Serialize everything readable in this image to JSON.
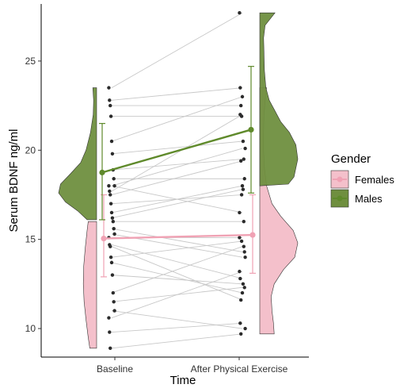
{
  "chart_data": {
    "type": "scatter",
    "xlabel": "Time",
    "ylabel": "Serum BDNF ng/ml",
    "categories": [
      "Baseline",
      "After Physical Exercise"
    ],
    "ylim": [
      8.4,
      28.2
    ],
    "yticks": [
      10,
      15,
      20,
      25
    ],
    "grid": false,
    "legend": {
      "title": "Gender",
      "position": "right",
      "entries": [
        "Females",
        "Males"
      ]
    },
    "colors": {
      "Females": "#f4c0cb",
      "Females_line": "#f0a2b4",
      "Males": "#6f8f3f",
      "Males_line": "#5f8a2b",
      "point": "#2b2b2b",
      "pair_line": "#c8c8c8"
    },
    "series": [
      {
        "name": "Females",
        "mean": [
          15.05,
          15.25
        ],
        "error_low": [
          12.9,
          13.1
        ],
        "error_high": [
          17.5,
          17.5
        ]
      },
      {
        "name": "Males",
        "mean": [
          18.75,
          21.15
        ],
        "error_low": [
          16.1,
          17.6
        ],
        "error_high": [
          21.5,
          24.7
        ]
      }
    ],
    "paired": [
      [
        23.5,
        27.7
      ],
      [
        22.8,
        23.5
      ],
      [
        22.5,
        22.5
      ],
      [
        21.9,
        21.9
      ],
      [
        20.5,
        23.0
      ],
      [
        19.8,
        20.5
      ],
      [
        18.9,
        19.5
      ],
      [
        18.4,
        18.4
      ],
      [
        18.0,
        20.1
      ],
      [
        18.0,
        16.5
      ],
      [
        17.7,
        22.0
      ],
      [
        17.5,
        19.4
      ],
      [
        17.0,
        17.5
      ],
      [
        16.5,
        18.0
      ],
      [
        16.2,
        17.8
      ],
      [
        16.0,
        16.0
      ],
      [
        15.6,
        14.3
      ],
      [
        15.3,
        14.0
      ],
      [
        15.1,
        15.1
      ],
      [
        14.7,
        12.8
      ],
      [
        14.6,
        11.6
      ],
      [
        14.0,
        14.9
      ],
      [
        13.7,
        12.0
      ],
      [
        13.0,
        12.5
      ],
      [
        12.0,
        14.6
      ],
      [
        11.5,
        12.3
      ],
      [
        11.0,
        10.0
      ],
      [
        10.6,
        13.2
      ],
      [
        9.8,
        10.3
      ],
      [
        8.9,
        9.7
      ]
    ],
    "violin_right": {
      "Males": [
        [
          18.0,
          0.0
        ],
        [
          18.1,
          0.75
        ],
        [
          18.5,
          0.9
        ],
        [
          19.5,
          1.0
        ],
        [
          20.3,
          0.95
        ],
        [
          21.0,
          0.78
        ],
        [
          21.6,
          0.55
        ],
        [
          22.2,
          0.4
        ],
        [
          22.8,
          0.25
        ],
        [
          23.5,
          0.16
        ],
        [
          24.5,
          0.12
        ],
        [
          25.5,
          0.11
        ],
        [
          26.3,
          0.1
        ],
        [
          27.0,
          0.14
        ],
        [
          27.7,
          0.4
        ],
        [
          27.7,
          0.0
        ]
      ],
      "Females": [
        [
          9.7,
          0.0
        ],
        [
          9.7,
          0.38
        ],
        [
          10.3,
          0.36
        ],
        [
          11.0,
          0.32
        ],
        [
          11.8,
          0.3
        ],
        [
          12.5,
          0.38
        ],
        [
          13.3,
          0.62
        ],
        [
          14.0,
          0.92
        ],
        [
          14.8,
          1.0
        ],
        [
          15.5,
          0.88
        ],
        [
          16.3,
          0.55
        ],
        [
          17.0,
          0.32
        ],
        [
          18.0,
          0.18
        ],
        [
          19.0,
          0.12
        ],
        [
          20.0,
          0.1
        ],
        [
          21.0,
          0.1
        ],
        [
          22.0,
          0.11
        ],
        [
          23.0,
          0.15
        ],
        [
          23.5,
          0.18
        ],
        [
          23.5,
          0.0
        ]
      ]
    },
    "violin_left": {
      "Males": [
        [
          16.1,
          0.0
        ],
        [
          16.1,
          0.25
        ],
        [
          16.6,
          0.5
        ],
        [
          17.1,
          0.82
        ],
        [
          17.6,
          1.0
        ],
        [
          18.1,
          0.95
        ],
        [
          18.7,
          0.68
        ],
        [
          19.3,
          0.42
        ],
        [
          20.0,
          0.28
        ],
        [
          21.0,
          0.16
        ],
        [
          22.0,
          0.09
        ],
        [
          22.8,
          0.08
        ],
        [
          23.5,
          0.1
        ],
        [
          23.5,
          0.0
        ]
      ],
      "Females": [
        [
          8.9,
          0.0
        ],
        [
          8.9,
          0.18
        ],
        [
          9.5,
          0.22
        ],
        [
          10.5,
          0.28
        ],
        [
          11.5,
          0.33
        ],
        [
          12.5,
          0.35
        ],
        [
          13.5,
          0.34
        ],
        [
          14.5,
          0.3
        ],
        [
          15.5,
          0.25
        ],
        [
          16.0,
          0.22
        ],
        [
          16.0,
          0.0
        ]
      ]
    }
  }
}
